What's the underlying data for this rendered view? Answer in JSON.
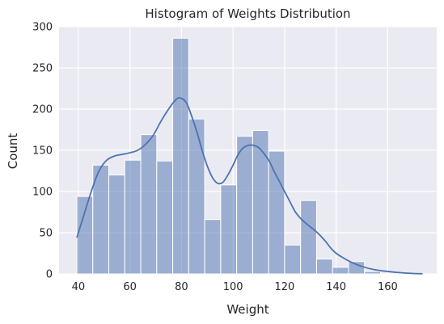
{
  "chart_data": {
    "type": "bar",
    "subtype": "histogram-with-kde",
    "title": "Histogram of Weights Distribution",
    "xlabel": "Weight",
    "ylabel": "Count",
    "xlim": [
      32.5,
      179
    ],
    "ylim": [
      0,
      300
    ],
    "xticks": [
      40,
      60,
      80,
      100,
      120,
      140,
      160
    ],
    "yticks": [
      0,
      50,
      100,
      150,
      200,
      250,
      300
    ],
    "grid": true,
    "legend": "none",
    "colors": {
      "background": "#EAEAF2",
      "grid": "#FFFFFF",
      "bar_fill": "#4C72B0",
      "bar_opacity": 0.5,
      "bar_edge": "#FFFFFF",
      "kde_line": "#4C72B0"
    },
    "bins": [
      {
        "x0": 39.4,
        "x1": 45.6,
        "count": 94
      },
      {
        "x0": 45.6,
        "x1": 51.8,
        "count": 132
      },
      {
        "x0": 51.8,
        "x1": 58.0,
        "count": 120
      },
      {
        "x0": 58.0,
        "x1": 64.2,
        "count": 138
      },
      {
        "x0": 64.2,
        "x1": 70.4,
        "count": 169
      },
      {
        "x0": 70.4,
        "x1": 76.6,
        "count": 137
      },
      {
        "x0": 76.6,
        "x1": 82.8,
        "count": 286
      },
      {
        "x0": 82.8,
        "x1": 89.0,
        "count": 188
      },
      {
        "x0": 89.0,
        "x1": 95.2,
        "count": 66
      },
      {
        "x0": 95.2,
        "x1": 101.4,
        "count": 108
      },
      {
        "x0": 101.4,
        "x1": 107.6,
        "count": 167
      },
      {
        "x0": 107.6,
        "x1": 113.8,
        "count": 174
      },
      {
        "x0": 113.8,
        "x1": 120.0,
        "count": 149
      },
      {
        "x0": 120.0,
        "x1": 126.2,
        "count": 35
      },
      {
        "x0": 126.2,
        "x1": 132.4,
        "count": 89
      },
      {
        "x0": 132.4,
        "x1": 138.6,
        "count": 18
      },
      {
        "x0": 138.6,
        "x1": 144.8,
        "count": 8
      },
      {
        "x0": 144.8,
        "x1": 151.0,
        "count": 15
      },
      {
        "x0": 151.0,
        "x1": 157.2,
        "count": 3
      },
      {
        "x0": 157.2,
        "x1": 163.4,
        "count": 0
      }
    ],
    "kde": {
      "x": [
        39.4,
        42,
        45,
        48,
        51,
        54,
        57,
        60,
        63,
        66,
        69,
        72,
        75,
        78,
        80,
        82,
        84,
        86,
        88,
        90,
        92,
        94,
        96,
        98,
        100,
        102,
        104,
        106,
        108,
        110,
        112,
        114,
        116,
        118,
        120,
        122,
        124,
        126,
        128,
        130,
        132,
        134,
        136,
        138,
        140,
        143,
        146,
        150,
        155,
        160,
        165,
        170,
        173.5
      ],
      "y": [
        44,
        70,
        100,
        125,
        138,
        143,
        145,
        147,
        150,
        157,
        168,
        185,
        200,
        212,
        213,
        207,
        191,
        172,
        150,
        131,
        117,
        110,
        111,
        120,
        132,
        145,
        153,
        156,
        156,
        153,
        146,
        137,
        124,
        112,
        100,
        88,
        76,
        68,
        62,
        57,
        52,
        46,
        39,
        31,
        25,
        19,
        14,
        9,
        5,
        3,
        1.5,
        0.5,
        0.2
      ]
    }
  }
}
